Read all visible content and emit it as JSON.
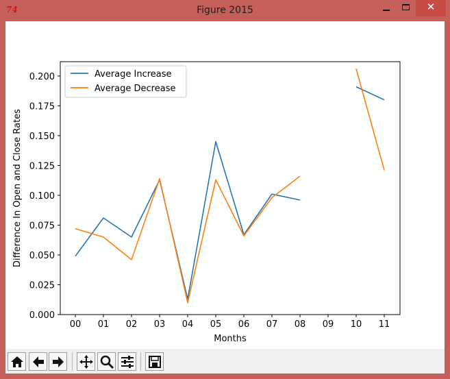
{
  "window": {
    "title": "Figure 2015",
    "app_icon_text": "74",
    "close_glyph": "✕"
  },
  "toolbar": {
    "buttons": [
      {
        "icon": "home-icon"
      },
      {
        "icon": "back-arrow-icon"
      },
      {
        "icon": "forward-arrow-icon"
      },
      {
        "icon": "pan-icon"
      },
      {
        "icon": "zoom-icon"
      },
      {
        "icon": "configure-subplots-icon"
      },
      {
        "icon": "save-icon"
      }
    ]
  },
  "colors": {
    "increase": "#1f77b4",
    "decrease": "#ff7f0e",
    "titlebar": "#c45f5a"
  },
  "chart_data": {
    "type": "line",
    "title": "",
    "xlabel": "Months",
    "ylabel": "Difference In Open and Close Rates",
    "categories": [
      "00",
      "01",
      "02",
      "03",
      "04",
      "05",
      "06",
      "07",
      "08",
      "09",
      "10",
      "11"
    ],
    "ylim": [
      0,
      0.212
    ],
    "yticks": [
      0.0,
      0.025,
      0.05,
      0.075,
      0.1,
      0.125,
      0.15,
      0.175,
      0.2
    ],
    "ytick_labels": [
      "0.000",
      "0.025",
      "0.050",
      "0.075",
      "0.100",
      "0.125",
      "0.150",
      "0.175",
      "0.200"
    ],
    "grid": false,
    "legend": "top-left",
    "series": [
      {
        "name": "Average Increase",
        "color": "#1f77b4",
        "values": [
          0.049,
          0.081,
          0.065,
          0.113,
          0.013,
          0.145,
          0.067,
          0.101,
          0.096,
          null,
          0.191,
          0.18
        ]
      },
      {
        "name": "Average Decrease",
        "color": "#ff7f0e",
        "values": [
          0.072,
          0.065,
          0.046,
          0.114,
          0.01,
          0.113,
          0.066,
          0.098,
          0.116,
          null,
          0.206,
          0.121
        ]
      }
    ]
  }
}
